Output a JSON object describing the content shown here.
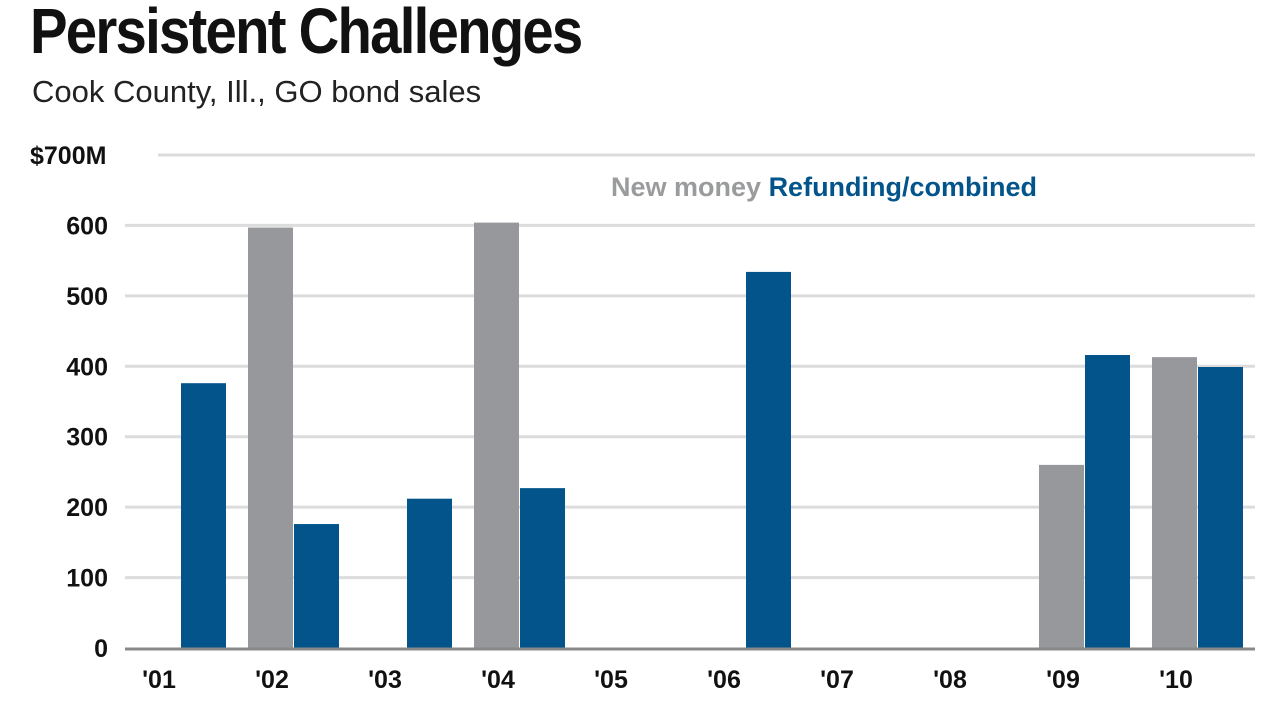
{
  "chart_data": {
    "type": "bar",
    "title": "Persistent Challenges",
    "subtitle": "Cook County, Ill., GO bond sales",
    "categories": [
      "'01",
      "'02",
      "'03",
      "'04",
      "'05",
      "'06",
      "'07",
      "'08",
      "'09",
      "'10"
    ],
    "series": [
      {
        "name": "New money",
        "color": "#96989b",
        "values": [
          0,
          597,
          0,
          604,
          0,
          0,
          0,
          0,
          260,
          413
        ]
      },
      {
        "name": "Refunding/combined",
        "color": "#02548a",
        "values": [
          376,
          176,
          212,
          227,
          0,
          534,
          0,
          0,
          416,
          399
        ]
      }
    ],
    "yticks": [
      "0",
      "100",
      "200",
      "300",
      "400",
      "500",
      "600",
      "$700M"
    ],
    "ylim": [
      0,
      700
    ],
    "grid": true,
    "legend": "top-center"
  }
}
